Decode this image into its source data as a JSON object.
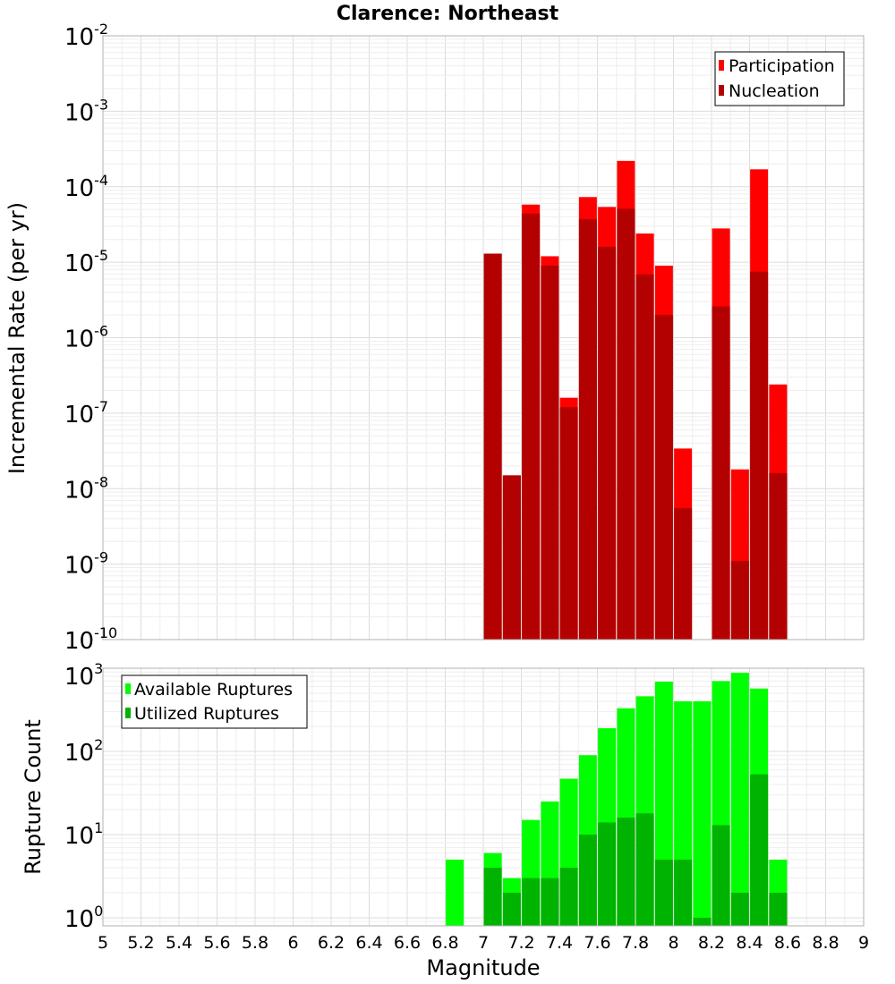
{
  "chart_data": [
    {
      "type": "bar",
      "title": "Clarence: Northeast",
      "xlabel": "Magnitude",
      "ylabel": "Incremental Rate (per yr)",
      "yscale": "log",
      "ylim": [
        1e-10,
        0.01
      ],
      "xlim": [
        5,
        9
      ],
      "grid": true,
      "legend_position": "top-right",
      "y_ticks": [
        {
          "base": "10",
          "exp": "-10"
        },
        {
          "base": "10",
          "exp": "-9"
        },
        {
          "base": "10",
          "exp": "-8"
        },
        {
          "base": "10",
          "exp": "-7"
        },
        {
          "base": "10",
          "exp": "-6"
        },
        {
          "base": "10",
          "exp": "-5"
        },
        {
          "base": "10",
          "exp": "-4"
        },
        {
          "base": "10",
          "exp": "-3"
        },
        {
          "base": "10",
          "exp": "-2"
        }
      ],
      "x": [
        7.05,
        7.15,
        7.25,
        7.35,
        7.45,
        7.55,
        7.65,
        7.75,
        7.85,
        7.95,
        8.05,
        8.15,
        8.25,
        8.35,
        8.45,
        8.55
      ],
      "series": [
        {
          "name": "Participation",
          "color": "#ff0000",
          "values": [
            1.3e-05,
            1.5e-08,
            5.8e-05,
            1.2e-05,
            1.6e-07,
            7.3e-05,
            5.4e-05,
            0.00022,
            2.4e-05,
            9e-06,
            3.4e-08,
            null,
            2.8e-05,
            1.8e-08,
            0.00017,
            2.4e-07
          ]
        },
        {
          "name": "Nucleation",
          "color": "#b30000",
          "values": [
            1.3e-05,
            1.5e-08,
            4.4e-05,
            9e-06,
            1.2e-07,
            3.7e-05,
            1.6e-05,
            5.1e-05,
            6.9e-06,
            2e-06,
            5.5e-09,
            null,
            2.6e-06,
            1.1e-09,
            7.5e-06,
            1.6e-08
          ]
        }
      ]
    },
    {
      "type": "bar",
      "title": "",
      "xlabel": "Magnitude",
      "ylabel": "Rupture Count",
      "yscale": "log",
      "ylim": [
        0.8,
        1000
      ],
      "xlim": [
        5,
        9
      ],
      "grid": true,
      "legend_position": "top-left",
      "y_ticks": [
        {
          "base": "10",
          "exp": "0"
        },
        {
          "base": "10",
          "exp": "1"
        },
        {
          "base": "10",
          "exp": "2"
        },
        {
          "base": "10",
          "exp": "3"
        }
      ],
      "x_ticks": [
        "5",
        "5.2",
        "5.4",
        "5.6",
        "5.8",
        "6",
        "6.2",
        "6.4",
        "6.6",
        "6.8",
        "7",
        "7.2",
        "7.4",
        "7.6",
        "7.8",
        "8",
        "8.2",
        "8.4",
        "8.6",
        "8.8",
        "9"
      ],
      "x": [
        6.85,
        6.95,
        7.05,
        7.15,
        7.25,
        7.35,
        7.45,
        7.55,
        7.65,
        7.75,
        7.85,
        7.95,
        8.05,
        8.15,
        8.25,
        8.35,
        8.45,
        8.55
      ],
      "series": [
        {
          "name": "Available Ruptures",
          "color": "#00ff00",
          "values": [
            5,
            null,
            6,
            3,
            15,
            25,
            47,
            90,
            190,
            330,
            460,
            690,
            400,
            400,
            700,
            880,
            570,
            5
          ]
        },
        {
          "name": "Utilized Ruptures",
          "color": "#00b300",
          "values": [
            null,
            null,
            4,
            2,
            3,
            3,
            4,
            10,
            14,
            16,
            18,
            5,
            5,
            1,
            13,
            2,
            53,
            2
          ]
        }
      ]
    }
  ]
}
